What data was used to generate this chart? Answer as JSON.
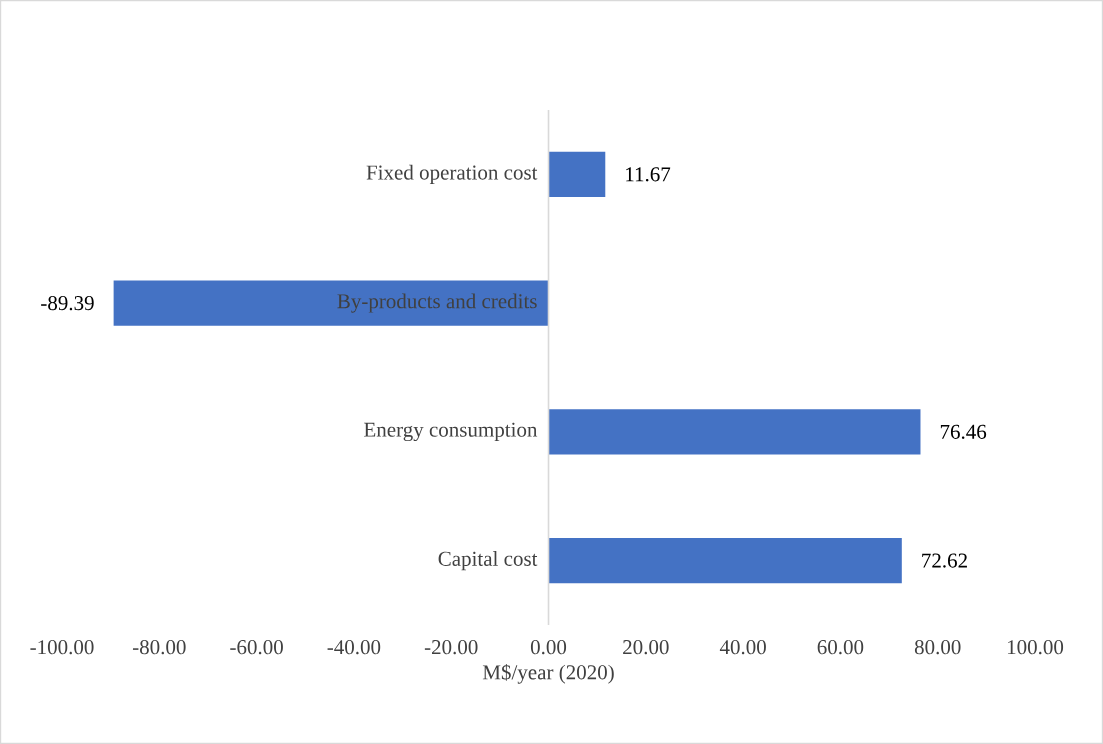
{
  "chart_data": {
    "type": "bar",
    "orientation": "horizontal",
    "categories": [
      "Fixed operation cost",
      "By-products and credits",
      "Energy consumption",
      "Capital cost"
    ],
    "values": [
      11.67,
      -89.39,
      76.46,
      72.62
    ],
    "color": "#4472c4",
    "xlabel": "M$/year (2020)",
    "xlim": [
      -100,
      100
    ],
    "xticks": [
      {
        "value": -100,
        "label": "-100.00"
      },
      {
        "value": -80,
        "label": "-80.00"
      },
      {
        "value": -60,
        "label": "-60.00"
      },
      {
        "value": -40,
        "label": "-40.00"
      },
      {
        "value": -20,
        "label": "-20.00"
      },
      {
        "value": 0,
        "label": "0.00"
      },
      {
        "value": 20,
        "label": "20.00"
      },
      {
        "value": 40,
        "label": "40.00"
      },
      {
        "value": 60,
        "label": "60.00"
      },
      {
        "value": 80,
        "label": "80.00"
      },
      {
        "value": 100,
        "label": "100.00"
      }
    ],
    "data_labels": true,
    "grid": false
  }
}
